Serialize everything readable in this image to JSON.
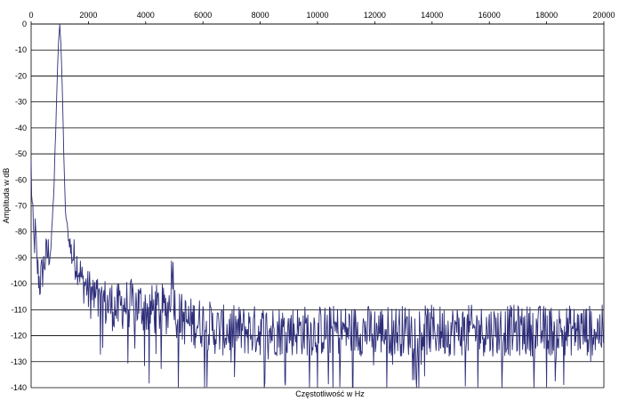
{
  "chart_data": {
    "type": "line",
    "title": "",
    "xlabel": "Częstotliwość w Hz",
    "ylabel": "Amplituda w dB",
    "xlim": [
      0,
      20000
    ],
    "ylim": [
      -140,
      0
    ],
    "x_axis_position": "top",
    "x_ticks": [
      0,
      2000,
      4000,
      6000,
      8000,
      10000,
      12000,
      14000,
      16000,
      18000,
      20000
    ],
    "y_ticks": [
      0,
      -10,
      -20,
      -30,
      -40,
      -50,
      -60,
      -70,
      -80,
      -90,
      -100,
      -110,
      -120,
      -130,
      -140
    ],
    "grid": "horizontal",
    "legend": "none",
    "line_color": "#2e2e7a",
    "series": [
      {
        "peak": {
          "x": 1000,
          "y": 0
        },
        "x": [
          0,
          50,
          100,
          150,
          200,
          300,
          400,
          500,
          600,
          700,
          800,
          850,
          900,
          950,
          1000,
          1050,
          1100,
          1150,
          1200,
          1300,
          1400,
          1500,
          1600,
          1700,
          1800,
          1900,
          2000,
          2100,
          2200,
          2300,
          2400,
          2500,
          2600,
          2800,
          3000,
          3200,
          3500,
          3800,
          4000,
          4200,
          4500,
          4800,
          4950,
          5000,
          5100,
          5500,
          6000,
          6500,
          7000,
          7500,
          8000,
          9000,
          10000,
          11000,
          12000,
          13000,
          14000,
          15000,
          16000,
          17000,
          18000,
          19000,
          19500,
          20000
        ],
        "y": [
          -55,
          -75,
          -85,
          -80,
          -92,
          -100,
          -95,
          -90,
          -88,
          -85,
          -62,
          -45,
          -25,
          -8,
          0,
          -10,
          -30,
          -55,
          -72,
          -82,
          -88,
          -90,
          -92,
          -95,
          -100,
          -100,
          -103,
          -104,
          -105,
          -106,
          -110,
          -105,
          -108,
          -108,
          -110,
          -108,
          -108,
          -108,
          -110,
          -110,
          -110,
          -110,
          -92,
          -108,
          -112,
          -115,
          -115,
          -118,
          -118,
          -118,
          -118,
          -118,
          -118,
          -118,
          -118,
          -118,
          -118,
          -118,
          -118,
          -118,
          -118,
          -118,
          -118,
          -118
        ]
      }
    ]
  }
}
